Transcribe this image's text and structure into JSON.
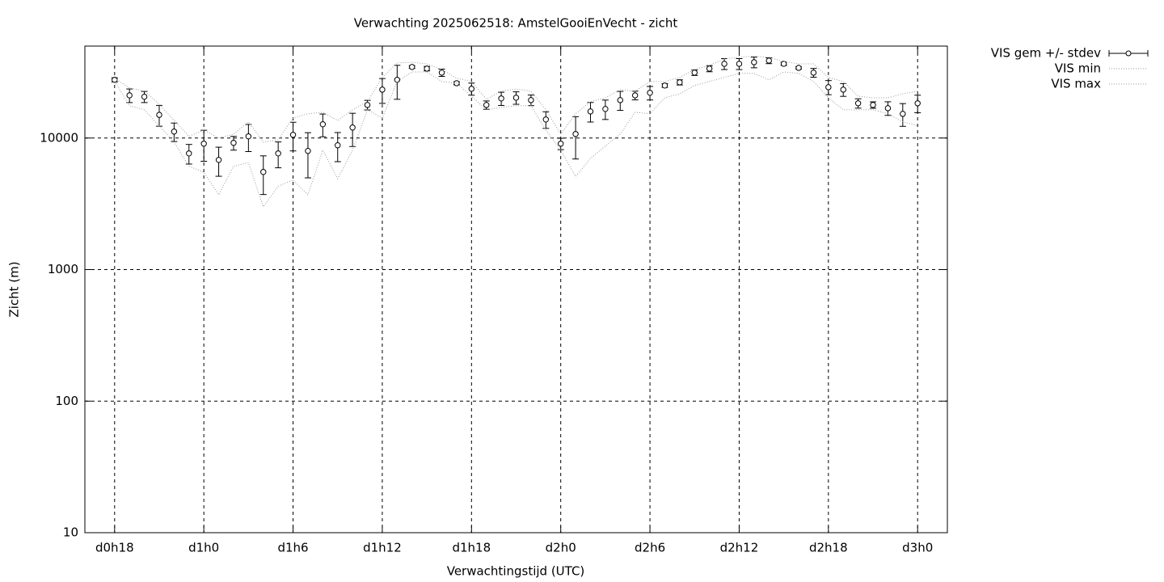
{
  "chart_data": {
    "type": "errorbar",
    "title": "Verwachting 2025062518: AmstelGooiEnVecht - zicht",
    "x_label": "Verwachtingstijd (UTC)",
    "y_label": "Zicht (m)",
    "log_y": true,
    "grid": true,
    "legend_position": "outside-top-right",
    "xlim": [
      16,
      74
    ],
    "xticks": [
      {
        "value": 18,
        "label": "d0h18"
      },
      {
        "value": 24,
        "label": "d1h0"
      },
      {
        "value": 30,
        "label": "d1h6"
      },
      {
        "value": 36,
        "label": "d1h12"
      },
      {
        "value": 42,
        "label": "d1h18"
      },
      {
        "value": 48,
        "label": "d2h0"
      },
      {
        "value": 54,
        "label": "d2h6"
      },
      {
        "value": 60,
        "label": "d2h12"
      },
      {
        "value": 66,
        "label": "d2h18"
      },
      {
        "value": 72,
        "label": "d3h0"
      }
    ],
    "ylim": [
      10,
      50000
    ],
    "yticks": [
      10,
      100,
      1000,
      10000
    ],
    "x": [
      18,
      19,
      20,
      21,
      22,
      23,
      24,
      25,
      26,
      27,
      28,
      29,
      30,
      31,
      32,
      33,
      34,
      35,
      36,
      37,
      38,
      39,
      40,
      41,
      42,
      43,
      44,
      45,
      46,
      47,
      48,
      49,
      50,
      51,
      52,
      53,
      54,
      55,
      56,
      57,
      58,
      59,
      60,
      61,
      62,
      63,
      64,
      65,
      66,
      67,
      68,
      69,
      70,
      71,
      72
    ],
    "series": [
      {
        "name": "VIS gem +/- stdev",
        "color": "#000000",
        "values": [
          27700,
          21100,
          20600,
          15000,
          11200,
          7640,
          9060,
          6820,
          9190,
          10290,
          5520,
          7640,
          10580,
          7980,
          12720,
          8810,
          12020,
          17840,
          23340,
          27700,
          34670,
          33700,
          31400,
          26100,
          23660,
          17840,
          19990,
          20250,
          19420,
          13840,
          9060,
          10730,
          15930,
          16630,
          19420,
          21100,
          22070,
          25070,
          26500,
          31400,
          33700,
          36650,
          36650,
          37690,
          38770,
          36650,
          34150,
          31400,
          24340,
          23340,
          18370,
          17840,
          16860,
          15270,
          18370
        ],
        "errors": [
          1000,
          2500,
          2000,
          2700,
          1800,
          1300,
          2400,
          1700,
          1100,
          2400,
          1800,
          1700,
          2600,
          3000,
          2500,
          2200,
          3400,
          1500,
          5000,
          8000,
          800,
          1300,
          2000,
          700,
          2500,
          1300,
          2300,
          2200,
          1800,
          2000,
          900,
          3800,
          2700,
          2800,
          3200,
          1600,
          2600,
          800,
          1200,
          1500,
          1800,
          3500,
          3500,
          3500,
          2000,
          1000,
          700,
          2400,
          3000,
          2600,
          1500,
          1000,
          2000,
          3000,
          2800
        ]
      },
      {
        "name": "VIS min",
        "color": "#999999",
        "values": [
          27000,
          17600,
          16400,
          12400,
          9300,
          6100,
          5500,
          3700,
          6100,
          6500,
          3000,
          4300,
          4800,
          3700,
          8100,
          4900,
          8100,
          16400,
          14200,
          26900,
          31800,
          31800,
          26900,
          26100,
          20800,
          16400,
          17100,
          17600,
          17600,
          11500,
          8100,
          5100,
          7000,
          8700,
          10700,
          15700,
          15300,
          20200,
          21700,
          25100,
          26900,
          28900,
          31000,
          31000,
          27700,
          31800,
          31000,
          26900,
          20200,
          16400,
          16400,
          16400,
          15300,
          13300,
          12400
        ]
      },
      {
        "name": "VIS max",
        "color": "#999999",
        "values": [
          28500,
          24000,
          22700,
          18100,
          13600,
          10300,
          11500,
          10000,
          10700,
          13300,
          9300,
          9700,
          14200,
          15300,
          15700,
          13600,
          16400,
          18900,
          28900,
          37200,
          37700,
          36600,
          33200,
          28500,
          26900,
          19700,
          22700,
          23600,
          22700,
          16400,
          10700,
          15300,
          18900,
          20200,
          23300,
          22700,
          26900,
          26900,
          28900,
          33200,
          35600,
          40000,
          41000,
          42000,
          41000,
          38200,
          36600,
          36600,
          28900,
          26900,
          20800,
          20200,
          20200,
          21700,
          22700
        ]
      }
    ]
  }
}
